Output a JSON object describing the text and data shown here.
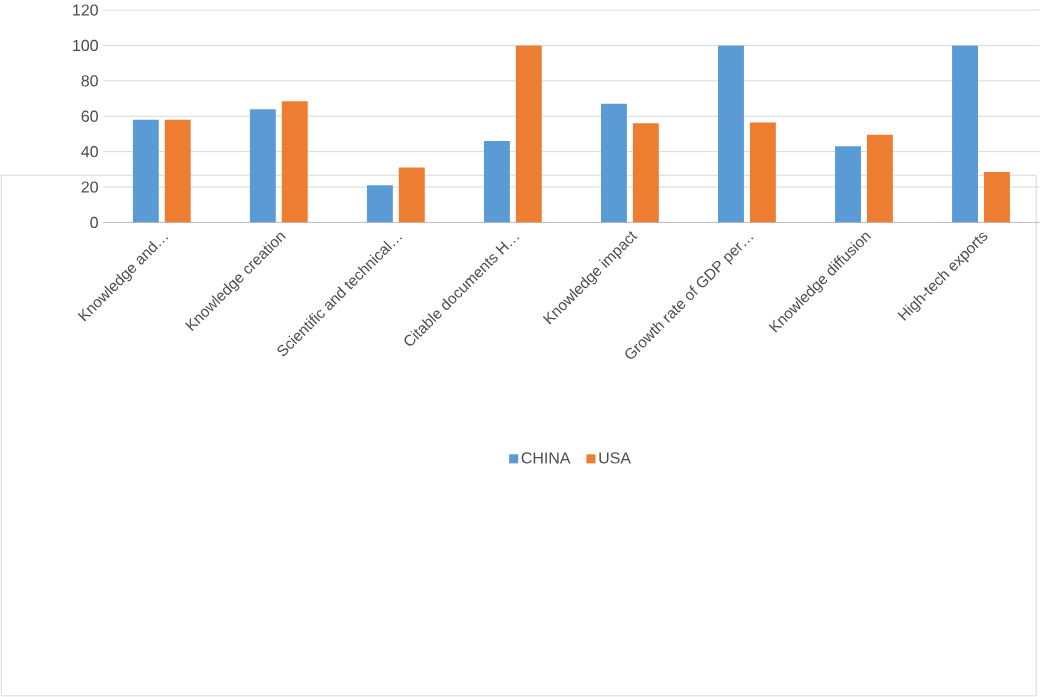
{
  "chart_data": {
    "type": "bar",
    "categories": [
      "Knowledge and…",
      "Knowledge creation",
      "Scientific and technical…",
      "Citable documents H…",
      "Knowledge impact",
      "Growth rate of GDP per…",
      "Knowledge diffusion",
      "High-tech exports"
    ],
    "series": [
      {
        "name": "CHINA",
        "color": "#5b9bd5",
        "values": [
          58,
          64,
          21,
          46,
          67,
          100,
          43,
          100
        ]
      },
      {
        "name": "USA",
        "color": "#ed7d31",
        "values": [
          58,
          68.5,
          31,
          100,
          56,
          56.5,
          49.5,
          28.5
        ]
      }
    ],
    "ylim": [
      0,
      120
    ],
    "yticks": [
      0,
      20,
      40,
      60,
      80,
      100,
      120
    ],
    "grid": "y",
    "legend": "bottom"
  }
}
